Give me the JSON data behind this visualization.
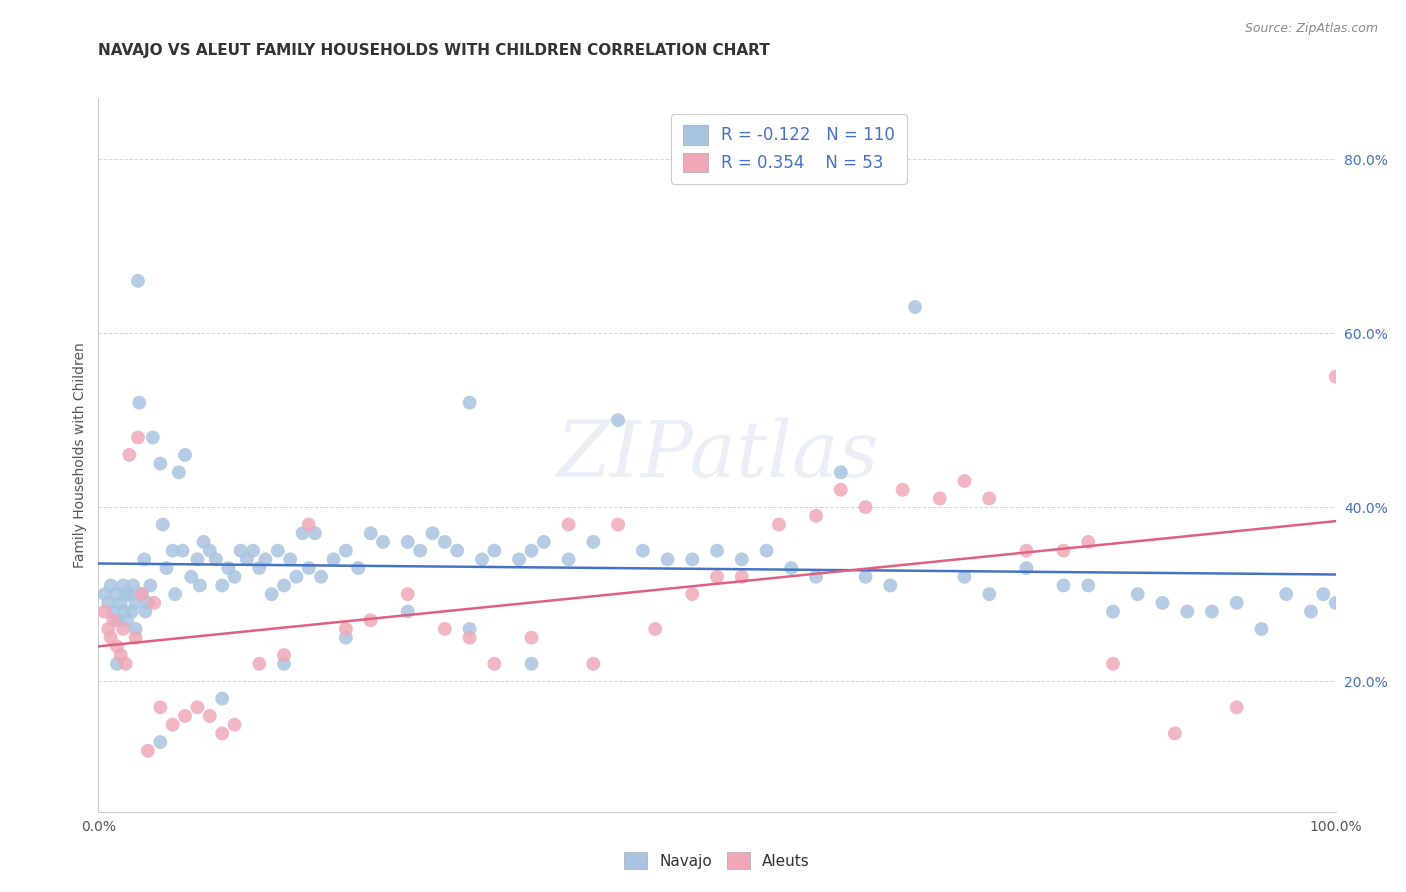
{
  "title": "NAVAJO VS ALEUT FAMILY HOUSEHOLDS WITH CHILDREN CORRELATION CHART",
  "source": "Source: ZipAtlas.com",
  "ylabel": "Family Households with Children",
  "watermark": "ZIPatlas",
  "navajo_R": -0.122,
  "navajo_N": 110,
  "aleuts_R": 0.354,
  "aleuts_N": 53,
  "navajo_color": "#a8c4e0",
  "aleuts_color": "#f0a8b8",
  "navajo_line_color": "#4472c4",
  "aleuts_line_color": "#e06080",
  "background_color": "#ffffff",
  "grid_color": "#cccccc",
  "title_color": "#333333",
  "legend_R_color": "#4472c4",
  "tick_color": "#4472c4",
  "xlim": [
    0.0,
    1.0
  ],
  "ylim": [
    0.05,
    0.87
  ],
  "xticks": [
    0.0,
    0.2,
    0.4,
    0.6,
    0.8,
    1.0
  ],
  "yticks": [
    0.2,
    0.4,
    0.6,
    0.8
  ],
  "xticklabels": [
    "0.0%",
    "",
    "",
    "",
    "",
    "100.0%"
  ],
  "yticklabels": [
    "20.0%",
    "40.0%",
    "60.0%",
    "80.0%"
  ],
  "navajo_x": [
    0.005,
    0.008,
    0.01,
    0.012,
    0.014,
    0.015,
    0.018,
    0.02,
    0.021,
    0.022,
    0.023,
    0.025,
    0.027,
    0.028,
    0.03,
    0.03,
    0.032,
    0.033,
    0.035,
    0.037,
    0.038,
    0.04,
    0.042,
    0.044,
    0.05,
    0.052,
    0.055,
    0.06,
    0.062,
    0.065,
    0.068,
    0.07,
    0.075,
    0.08,
    0.082,
    0.085,
    0.09,
    0.095,
    0.1,
    0.105,
    0.11,
    0.115,
    0.12,
    0.125,
    0.13,
    0.135,
    0.14,
    0.145,
    0.15,
    0.155,
    0.16,
    0.165,
    0.17,
    0.175,
    0.18,
    0.19,
    0.2,
    0.21,
    0.22,
    0.23,
    0.25,
    0.26,
    0.27,
    0.28,
    0.29,
    0.3,
    0.31,
    0.32,
    0.34,
    0.35,
    0.36,
    0.38,
    0.4,
    0.42,
    0.44,
    0.46,
    0.48,
    0.5,
    0.52,
    0.54,
    0.56,
    0.58,
    0.6,
    0.62,
    0.64,
    0.66,
    0.7,
    0.72,
    0.75,
    0.78,
    0.8,
    0.82,
    0.84,
    0.86,
    0.88,
    0.9,
    0.92,
    0.94,
    0.96,
    0.98,
    0.99,
    1.0,
    0.015,
    0.05,
    0.1,
    0.15,
    0.2,
    0.25,
    0.3,
    0.35
  ],
  "navajo_y": [
    0.3,
    0.29,
    0.31,
    0.28,
    0.3,
    0.27,
    0.29,
    0.31,
    0.28,
    0.3,
    0.27,
    0.3,
    0.28,
    0.31,
    0.29,
    0.26,
    0.66,
    0.52,
    0.3,
    0.34,
    0.28,
    0.29,
    0.31,
    0.48,
    0.45,
    0.38,
    0.33,
    0.35,
    0.3,
    0.44,
    0.35,
    0.46,
    0.32,
    0.34,
    0.31,
    0.36,
    0.35,
    0.34,
    0.31,
    0.33,
    0.32,
    0.35,
    0.34,
    0.35,
    0.33,
    0.34,
    0.3,
    0.35,
    0.31,
    0.34,
    0.32,
    0.37,
    0.33,
    0.37,
    0.32,
    0.34,
    0.35,
    0.33,
    0.37,
    0.36,
    0.36,
    0.35,
    0.37,
    0.36,
    0.35,
    0.52,
    0.34,
    0.35,
    0.34,
    0.35,
    0.36,
    0.34,
    0.36,
    0.5,
    0.35,
    0.34,
    0.34,
    0.35,
    0.34,
    0.35,
    0.33,
    0.32,
    0.44,
    0.32,
    0.31,
    0.63,
    0.32,
    0.3,
    0.33,
    0.31,
    0.31,
    0.28,
    0.3,
    0.29,
    0.28,
    0.28,
    0.29,
    0.26,
    0.3,
    0.28,
    0.3,
    0.29,
    0.22,
    0.13,
    0.18,
    0.22,
    0.25,
    0.28,
    0.26,
    0.22
  ],
  "aleuts_x": [
    0.005,
    0.008,
    0.01,
    0.012,
    0.015,
    0.018,
    0.02,
    0.022,
    0.025,
    0.03,
    0.032,
    0.035,
    0.04,
    0.045,
    0.05,
    0.06,
    0.07,
    0.08,
    0.09,
    0.1,
    0.11,
    0.13,
    0.15,
    0.17,
    0.2,
    0.22,
    0.25,
    0.28,
    0.3,
    0.32,
    0.35,
    0.38,
    0.4,
    0.42,
    0.45,
    0.48,
    0.5,
    0.52,
    0.55,
    0.58,
    0.6,
    0.62,
    0.65,
    0.68,
    0.7,
    0.72,
    0.75,
    0.78,
    0.8,
    0.82,
    0.87,
    0.92,
    1.0
  ],
  "aleuts_y": [
    0.28,
    0.26,
    0.25,
    0.27,
    0.24,
    0.23,
    0.26,
    0.22,
    0.46,
    0.25,
    0.48,
    0.3,
    0.12,
    0.29,
    0.17,
    0.15,
    0.16,
    0.17,
    0.16,
    0.14,
    0.15,
    0.22,
    0.23,
    0.38,
    0.26,
    0.27,
    0.3,
    0.26,
    0.25,
    0.22,
    0.25,
    0.38,
    0.22,
    0.38,
    0.26,
    0.3,
    0.32,
    0.32,
    0.38,
    0.39,
    0.42,
    0.4,
    0.42,
    0.41,
    0.43,
    0.41,
    0.35,
    0.35,
    0.36,
    0.22,
    0.14,
    0.17,
    0.55
  ]
}
